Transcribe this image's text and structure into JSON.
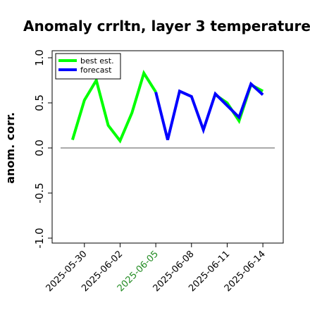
{
  "chart_data": {
    "type": "line",
    "title": "Anomaly crrltn, layer 3 temperature",
    "ylabel": "anom. corr.",
    "ylim": [
      -1.0,
      1.0
    ],
    "yticks": [
      "-1.0",
      "-0.5",
      "0.0",
      "0.5",
      "1.0"
    ],
    "xlim": [
      "2025-05-28",
      "2025-06-15"
    ],
    "xticks": [
      {
        "label": "2025-05-30",
        "color": "#000000"
      },
      {
        "label": "2025-06-02",
        "color": "#000000"
      },
      {
        "label": "2025-06-05",
        "color": "#228b22"
      },
      {
        "label": "2025-06-08",
        "color": "#000000"
      },
      {
        "label": "2025-06-11",
        "color": "#000000"
      },
      {
        "label": "2025-06-14",
        "color": "#000000"
      }
    ],
    "reference_line": 0.0,
    "legend_position": "top-left",
    "series": [
      {
        "name": "best est.",
        "color": "#00ff00",
        "x": [
          "2025-05-29",
          "2025-05-30",
          "2025-05-31",
          "2025-06-01",
          "2025-06-02",
          "2025-06-03",
          "2025-06-04",
          "2025-06-05"
        ],
        "y": [
          0.09,
          0.53,
          0.75,
          0.25,
          0.08,
          0.39,
          0.83,
          0.62
        ]
      },
      {
        "name": "",
        "color": "#00ff00",
        "x": [
          "2025-06-10",
          "2025-06-11",
          "2025-06-12",
          "2025-06-13",
          "2025-06-14"
        ],
        "y": [
          0.59,
          0.5,
          0.3,
          0.7,
          0.63
        ]
      },
      {
        "name": "forecast",
        "color": "#0000ff",
        "x": [
          "2025-06-05",
          "2025-06-06",
          "2025-06-07",
          "2025-06-08",
          "2025-06-09",
          "2025-06-10",
          "2025-06-11",
          "2025-06-12",
          "2025-06-13",
          "2025-06-14"
        ],
        "y": [
          0.62,
          0.09,
          0.63,
          0.57,
          0.2,
          0.6,
          0.47,
          0.34,
          0.71,
          0.59
        ]
      }
    ]
  }
}
